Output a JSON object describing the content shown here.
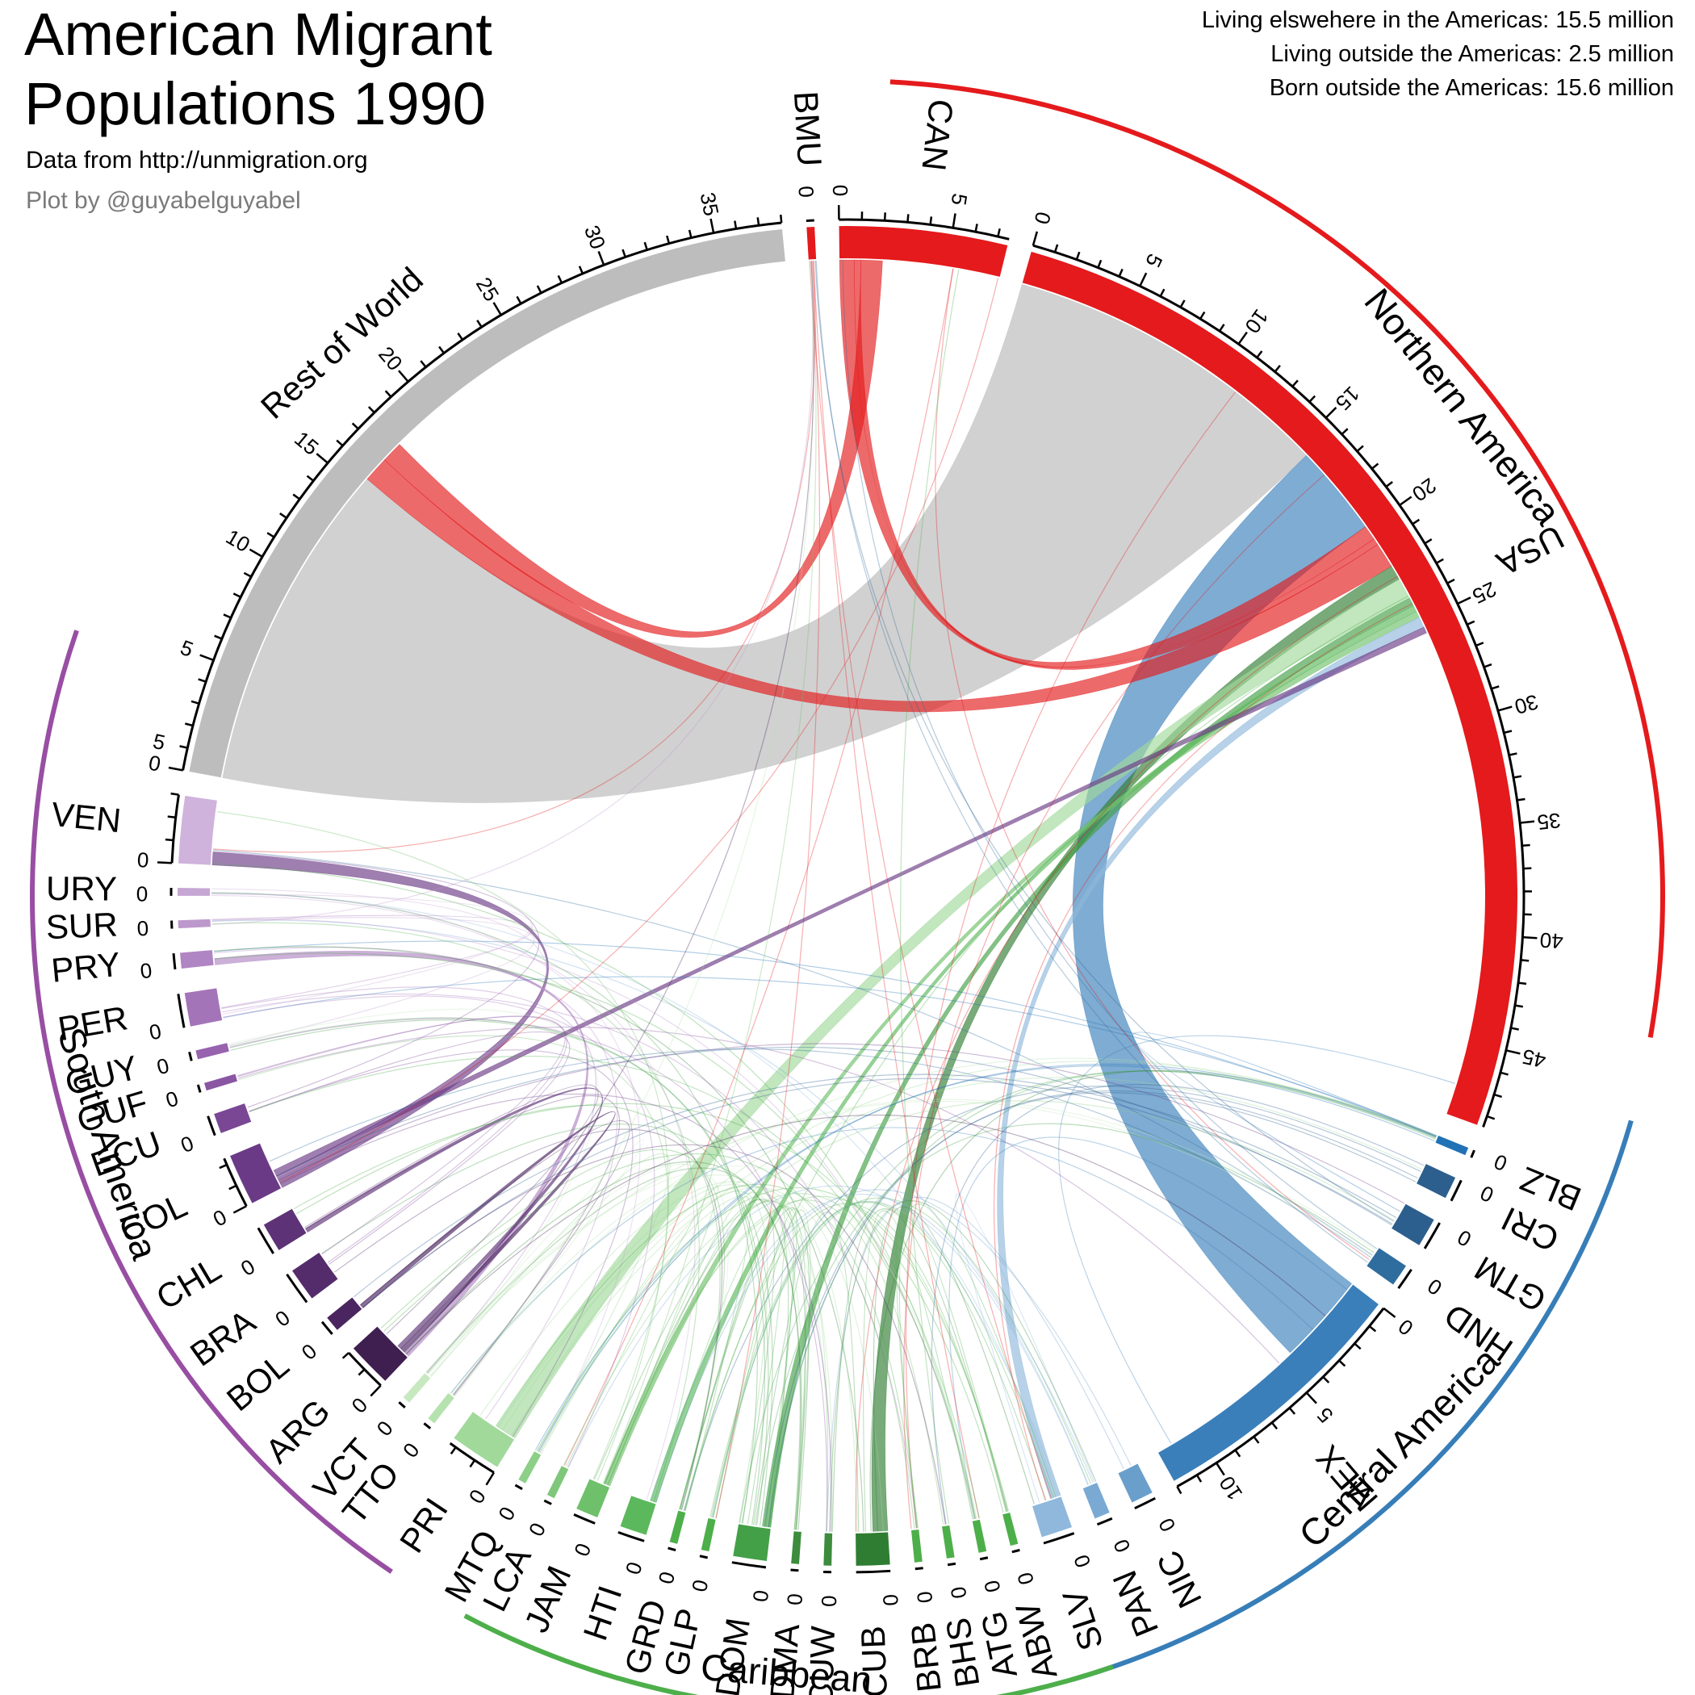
{
  "header": {
    "title_line1": "American Migrant",
    "title_line2": "Populations 1990",
    "source": "Data from http://unmigration.org",
    "credit": "Plot by @guyabelguyabel"
  },
  "summary": [
    "Living elswehere in the Americas: 15.5 million",
    "Living outside the Americas: 2.5 million",
    "Born outside the Americas: 15.6 million"
  ],
  "chart_data": {
    "type": "chord",
    "units": "millions",
    "regions": [
      {
        "name": "Northern America",
        "color": "#e41a1c",
        "start_deg": 3,
        "end_deg": 100
      },
      {
        "name": "Central America",
        "color": "#377eb8",
        "start_deg": 106,
        "end_deg": 164
      },
      {
        "name": "Caribbean",
        "color": "#4daf4a",
        "start_deg": 161,
        "end_deg": 208
      },
      {
        "name": "South America",
        "color": "#984ea3",
        "start_deg": 214,
        "end_deg": 289
      }
    ],
    "sectors": [
      {
        "code": "BMU",
        "region": "Northern America",
        "total": 0.05,
        "color": "#e41a1c",
        "ticks": [
          0
        ]
      },
      {
        "code": "CAN",
        "region": "Northern America",
        "total": 7.5,
        "color": "#e41a1c",
        "ticks": [
          0,
          5
        ]
      },
      {
        "code": "USA",
        "region": "Northern America",
        "total": 48.5,
        "color": "#e41a1c",
        "ticks": [
          0,
          5,
          10,
          15,
          20,
          25,
          30,
          35,
          40,
          45
        ]
      },
      {
        "code": "BLZ",
        "region": "Central America",
        "total": 0.1,
        "color": "#2171b5",
        "ticks": [
          0
        ]
      },
      {
        "code": "CRI",
        "region": "Central America",
        "total": 1.0,
        "color": "#2c5f8e",
        "ticks": [
          0
        ]
      },
      {
        "code": "GTM",
        "region": "Central America",
        "total": 1.3,
        "color": "#2c5f8e",
        "ticks": [
          0
        ]
      },
      {
        "code": "HND",
        "region": "Central America",
        "total": 1.0,
        "color": "#2f6d9e",
        "ticks": [
          0
        ]
      },
      {
        "code": "MEX",
        "region": "Central America",
        "total": 12.0,
        "color": "#3a7fba",
        "ticks": [
          0,
          5,
          10
        ]
      },
      {
        "code": "NIC",
        "region": "Central America",
        "total": 1.0,
        "color": "#6a9fcc",
        "ticks": [
          0
        ]
      },
      {
        "code": "PAN",
        "region": "Central America",
        "total": 0.7,
        "color": "#7aaad4",
        "ticks": [
          0
        ]
      },
      {
        "code": "SLV",
        "region": "Central America",
        "total": 1.4,
        "color": "#8fb8dc",
        "ticks": [
          0
        ]
      },
      {
        "code": "ABW",
        "region": "Caribbean",
        "total": 0.05,
        "color": "#4daf4a",
        "ticks": [
          0
        ]
      },
      {
        "code": "ATG",
        "region": "Caribbean",
        "total": 0.1,
        "color": "#4daf4a",
        "ticks": [
          0
        ]
      },
      {
        "code": "BHS",
        "region": "Caribbean",
        "total": 0.1,
        "color": "#4daf4a",
        "ticks": [
          0
        ]
      },
      {
        "code": "BRB",
        "region": "Caribbean",
        "total": 0.1,
        "color": "#4daf4a",
        "ticks": [
          0
        ]
      },
      {
        "code": "CUB",
        "region": "Caribbean",
        "total": 1.5,
        "color": "#2f7d32",
        "ticks": [
          0
        ]
      },
      {
        "code": "CUW",
        "region": "Caribbean",
        "total": 0.2,
        "color": "#3d8b3d",
        "ticks": [
          0
        ]
      },
      {
        "code": "DMA",
        "region": "Caribbean",
        "total": 0.1,
        "color": "#3d8b3d",
        "ticks": [
          0
        ]
      },
      {
        "code": "DOM",
        "region": "Caribbean",
        "total": 1.5,
        "color": "#43a047",
        "ticks": [
          0
        ]
      },
      {
        "code": "GLP",
        "region": "Caribbean",
        "total": 0.1,
        "color": "#4daf4a",
        "ticks": [
          0
        ]
      },
      {
        "code": "GRD",
        "region": "Caribbean",
        "total": 0.1,
        "color": "#4daf4a",
        "ticks": [
          0
        ]
      },
      {
        "code": "HTI",
        "region": "Caribbean",
        "total": 1.2,
        "color": "#5cb85c",
        "ticks": [
          0
        ]
      },
      {
        "code": "JAM",
        "region": "Caribbean",
        "total": 1.0,
        "color": "#6fc06a",
        "ticks": [
          0
        ]
      },
      {
        "code": "LCA",
        "region": "Caribbean",
        "total": 0.1,
        "color": "#7fc77a",
        "ticks": [
          0
        ]
      },
      {
        "code": "MTQ",
        "region": "Caribbean",
        "total": 0.1,
        "color": "#8ccf87",
        "ticks": [
          0
        ]
      },
      {
        "code": "PRI",
        "region": "Caribbean",
        "total": 2.3,
        "color": "#a1d99b",
        "ticks": [
          0
        ]
      },
      {
        "code": "TTO",
        "region": "Caribbean",
        "total": 0.2,
        "color": "#b5e2ae",
        "ticks": [
          0
        ]
      },
      {
        "code": "VCT",
        "region": "Caribbean",
        "total": 0.1,
        "color": "#c7e9c0",
        "ticks": [
          0
        ]
      },
      {
        "code": "ARG",
        "region": "South America",
        "total": 2.0,
        "color": "#3f1f4f",
        "ticks": [
          0
        ]
      },
      {
        "code": "BOL",
        "region": "South America",
        "total": 0.7,
        "color": "#4a2560",
        "ticks": [
          0
        ]
      },
      {
        "code": "BRA",
        "region": "South America",
        "total": 1.5,
        "color": "#542b6b",
        "ticks": [
          0
        ]
      },
      {
        "code": "CHL",
        "region": "South America",
        "total": 1.3,
        "color": "#5e3276",
        "ticks": [
          0
        ]
      },
      {
        "code": "COL",
        "region": "South America",
        "total": 2.3,
        "color": "#6b3a86",
        "ticks": [
          0
        ]
      },
      {
        "code": "ECU",
        "region": "South America",
        "total": 0.9,
        "color": "#7a4795",
        "ticks": [
          0
        ]
      },
      {
        "code": "GUF",
        "region": "South America",
        "total": 0.1,
        "color": "#8a56a4",
        "ticks": [
          0
        ]
      },
      {
        "code": "GUY",
        "region": "South America",
        "total": 0.4,
        "color": "#9762ae",
        "ticks": [
          0
        ]
      },
      {
        "code": "PER",
        "region": "South America",
        "total": 1.5,
        "color": "#a474b9",
        "ticks": [
          0
        ]
      },
      {
        "code": "PRY",
        "region": "South America",
        "total": 0.7,
        "color": "#b085c3",
        "ticks": [
          0
        ]
      },
      {
        "code": "SUR",
        "region": "South America",
        "total": 0.2,
        "color": "#bd98cc",
        "ticks": [
          0
        ]
      },
      {
        "code": "URY",
        "region": "South America",
        "total": 0.3,
        "color": "#c6a6d3",
        "ticks": [
          0
        ]
      },
      {
        "code": "VEN",
        "region": "South America",
        "total": 3.0,
        "color": "#cfb3dc",
        "ticks": [
          0,
          5
        ]
      },
      {
        "code": "Rest of World",
        "region": "",
        "total": 38,
        "color": "#bdbdbd",
        "ticks": [
          0,
          5,
          10,
          15,
          20,
          25,
          30,
          35
        ]
      }
    ],
    "flows": [
      {
        "from": "Rest of World",
        "to": "USA",
        "value": 15.6
      },
      {
        "from": "MEX",
        "to": "USA",
        "value": 4.3
      },
      {
        "from": "CAN",
        "to": "USA",
        "value": 0.7
      },
      {
        "from": "USA",
        "to": "CAN",
        "value": 0.3
      },
      {
        "from": "USA",
        "to": "Rest of World",
        "value": 1.2
      },
      {
        "from": "CAN",
        "to": "Rest of World",
        "value": 1.0
      },
      {
        "from": "CUB",
        "to": "USA",
        "value": 0.7
      },
      {
        "from": "PRI",
        "to": "USA",
        "value": 1.0
      },
      {
        "from": "DOM",
        "to": "USA",
        "value": 0.4
      },
      {
        "from": "HTI",
        "to": "USA",
        "value": 0.3
      },
      {
        "from": "JAM",
        "to": "USA",
        "value": 0.3
      },
      {
        "from": "SLV",
        "to": "USA",
        "value": 0.5
      },
      {
        "from": "COL",
        "to": "VEN",
        "value": 0.6
      },
      {
        "from": "COL",
        "to": "USA",
        "value": 0.3
      },
      {
        "from": "PRY",
        "to": "ARG",
        "value": 0.3
      },
      {
        "from": "BOL",
        "to": "ARG",
        "value": 0.2
      },
      {
        "from": "CHL",
        "to": "ARG",
        "value": 0.2
      }
    ]
  }
}
